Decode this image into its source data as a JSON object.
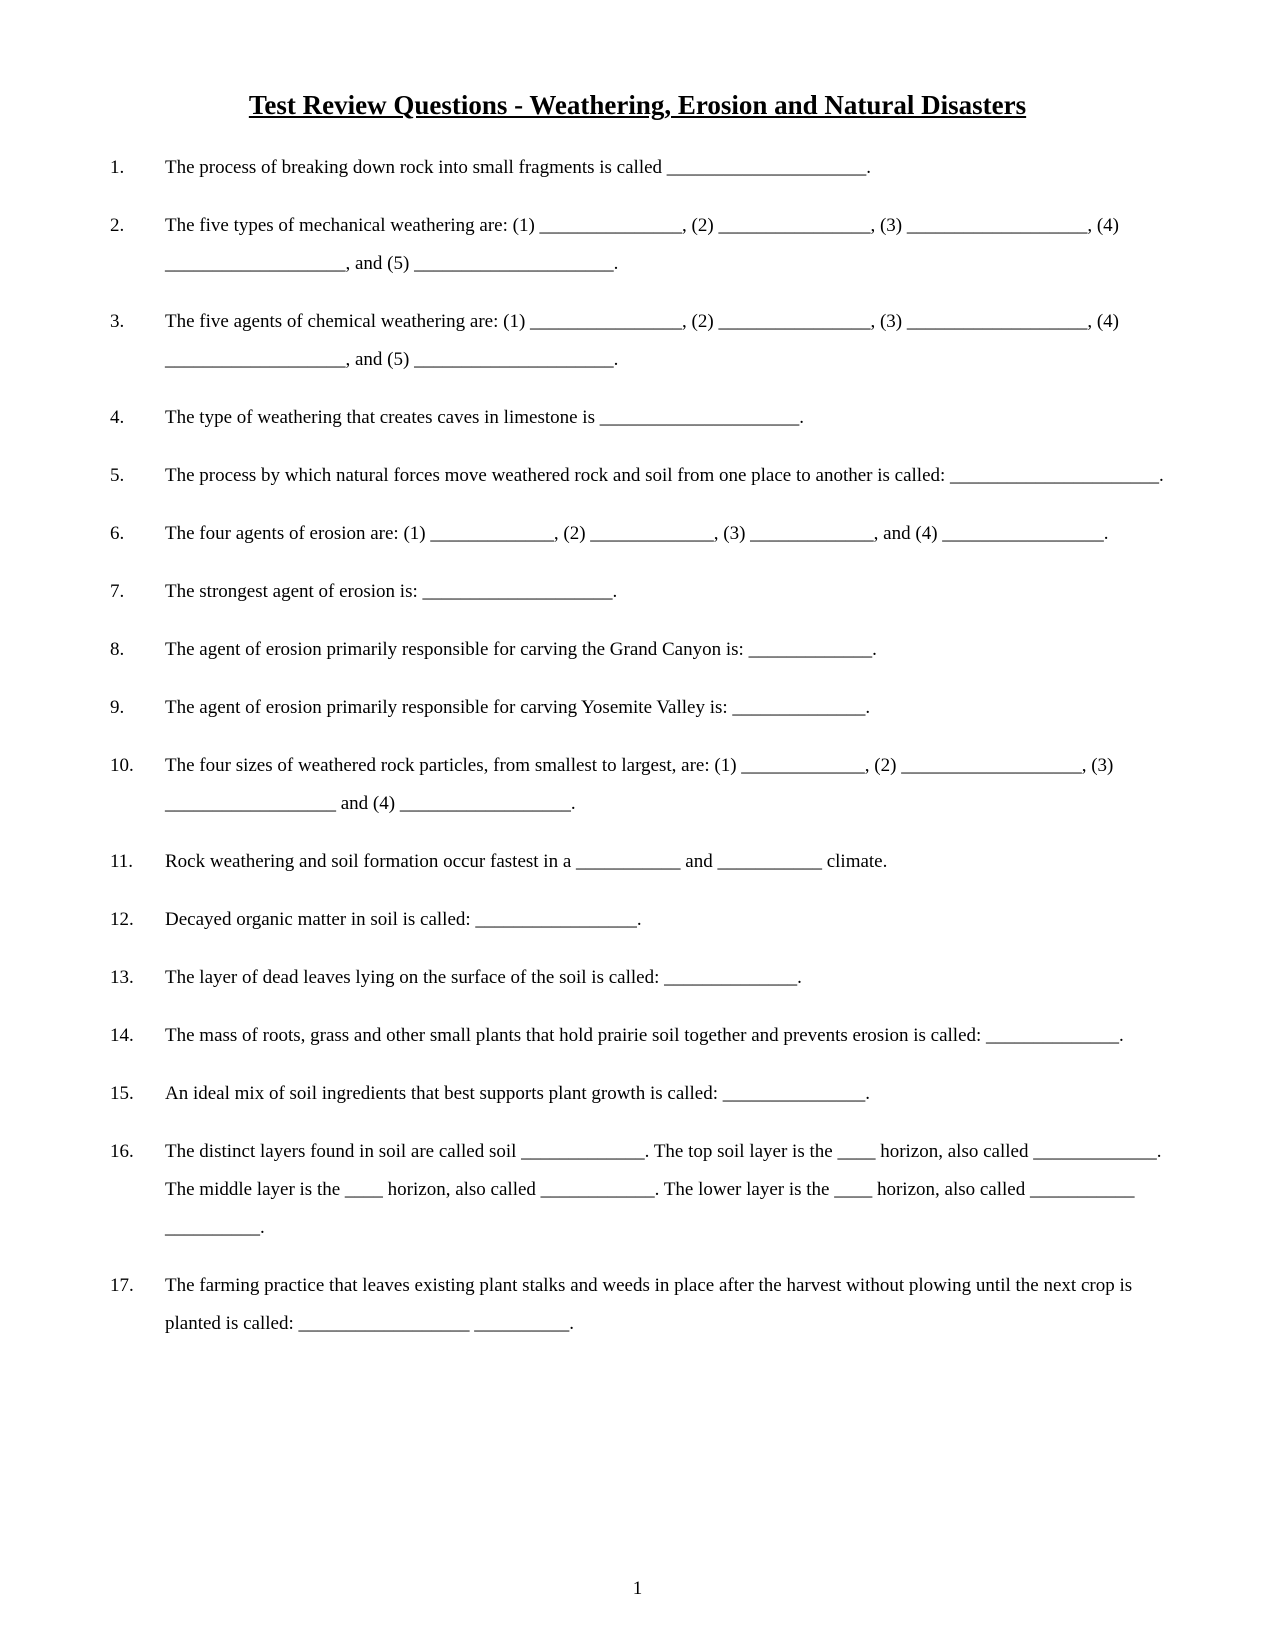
{
  "title": "Test Review Questions - Weathering, Erosion and Natural Disasters",
  "page_number": "1",
  "questions": [
    {
      "num": "1.",
      "text": "The process of breaking down rock into small fragments is called _____________________."
    },
    {
      "num": "2.",
      "text": "The five types of mechanical weathering are: (1) _______________, (2) ________________, (3) ___________________, (4) ___________________, and (5) _____________________."
    },
    {
      "num": "3.",
      "text": "The five agents of chemical weathering are: (1) ________________, (2) ________________, (3) ___________________, (4) ___________________, and (5) _____________________."
    },
    {
      "num": "4.",
      "text": "The type of weathering that creates caves in limestone is _____________________."
    },
    {
      "num": "5.",
      "text": "The process by which natural forces move weathered rock and soil from one place to another is called: ______________________."
    },
    {
      "num": "6.",
      "text": "The four agents of erosion are: (1) _____________, (2) _____________, (3) _____________, and (4) _________________."
    },
    {
      "num": "7.",
      "text": "The strongest agent of erosion is: ____________________."
    },
    {
      "num": "8.",
      "text": "The agent of erosion primarily responsible for carving the Grand Canyon is: _____________."
    },
    {
      "num": "9.",
      "text": "The agent of erosion primarily responsible for carving Yosemite Valley is: ______________."
    },
    {
      "num": "10.",
      "text": "The four sizes of weathered rock particles, from smallest to largest, are: (1) _____________, (2) ___________________, (3) __________________ and (4) __________________."
    },
    {
      "num": "11.",
      "text": "Rock weathering and soil formation occur fastest in a ___________ and ___________ climate."
    },
    {
      "num": "12.",
      "text": "Decayed organic matter in soil is called: _________________."
    },
    {
      "num": "13.",
      "text": "The layer of dead leaves lying on the surface of the soil is called: ______________."
    },
    {
      "num": "14.",
      "text": "The mass of roots, grass and other small plants that hold prairie soil together and prevents erosion is called: ______________."
    },
    {
      "num": "15.",
      "text": "An ideal mix of soil ingredients that best supports plant growth is called: _______________."
    },
    {
      "num": "16.",
      "text": "The distinct layers found in soil are called soil _____________.  The top soil layer is the ____ horizon, also called _____________.  The middle layer is the ____ horizon, also called ____________.  The lower layer is the ____ horizon, also called ___________ __________."
    },
    {
      "num": "17.",
      "text": "The farming practice that leaves existing plant stalks and weeds in place after the harvest without plowing until the next crop is planted is called: __________________ __________."
    }
  ]
}
